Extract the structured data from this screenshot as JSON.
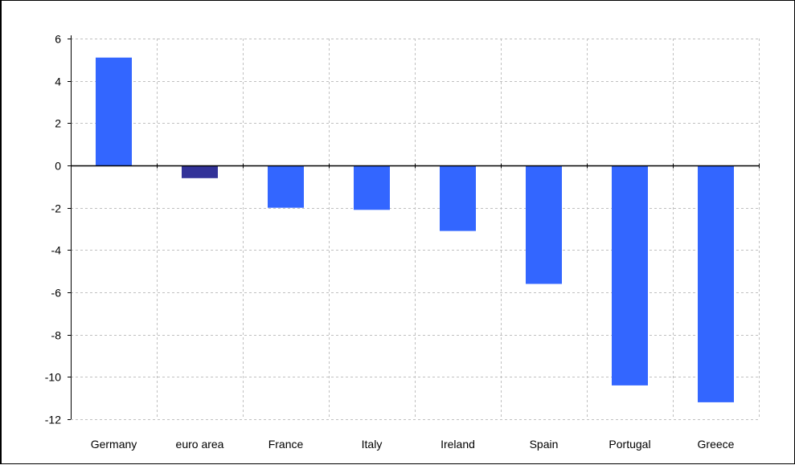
{
  "chart_data": {
    "type": "bar",
    "title": "",
    "xlabel": "",
    "ylabel": "",
    "categories": [
      "Germany",
      "euro area",
      "France",
      "Italy",
      "Ireland",
      "Spain",
      "Portugal",
      "Greece"
    ],
    "values": [
      5.1,
      -0.6,
      -2.0,
      -2.1,
      -3.1,
      -5.6,
      -10.4,
      -11.2
    ],
    "bar_colors": [
      "#3366ff",
      "#333399",
      "#3366ff",
      "#3366ff",
      "#3366ff",
      "#3366ff",
      "#3366ff",
      "#3366ff"
    ],
    "ylim": [
      -12,
      6
    ],
    "yticks": [
      6,
      4,
      2,
      0,
      -2,
      -4,
      -6,
      -8,
      -10,
      -12
    ],
    "grid": true,
    "grid_style": "dashed",
    "legend": "none"
  },
  "colors": {
    "bar": "#3366ff",
    "highlight_bar": "#333399",
    "grid": "#c0c0c0",
    "axis": "#000000"
  }
}
